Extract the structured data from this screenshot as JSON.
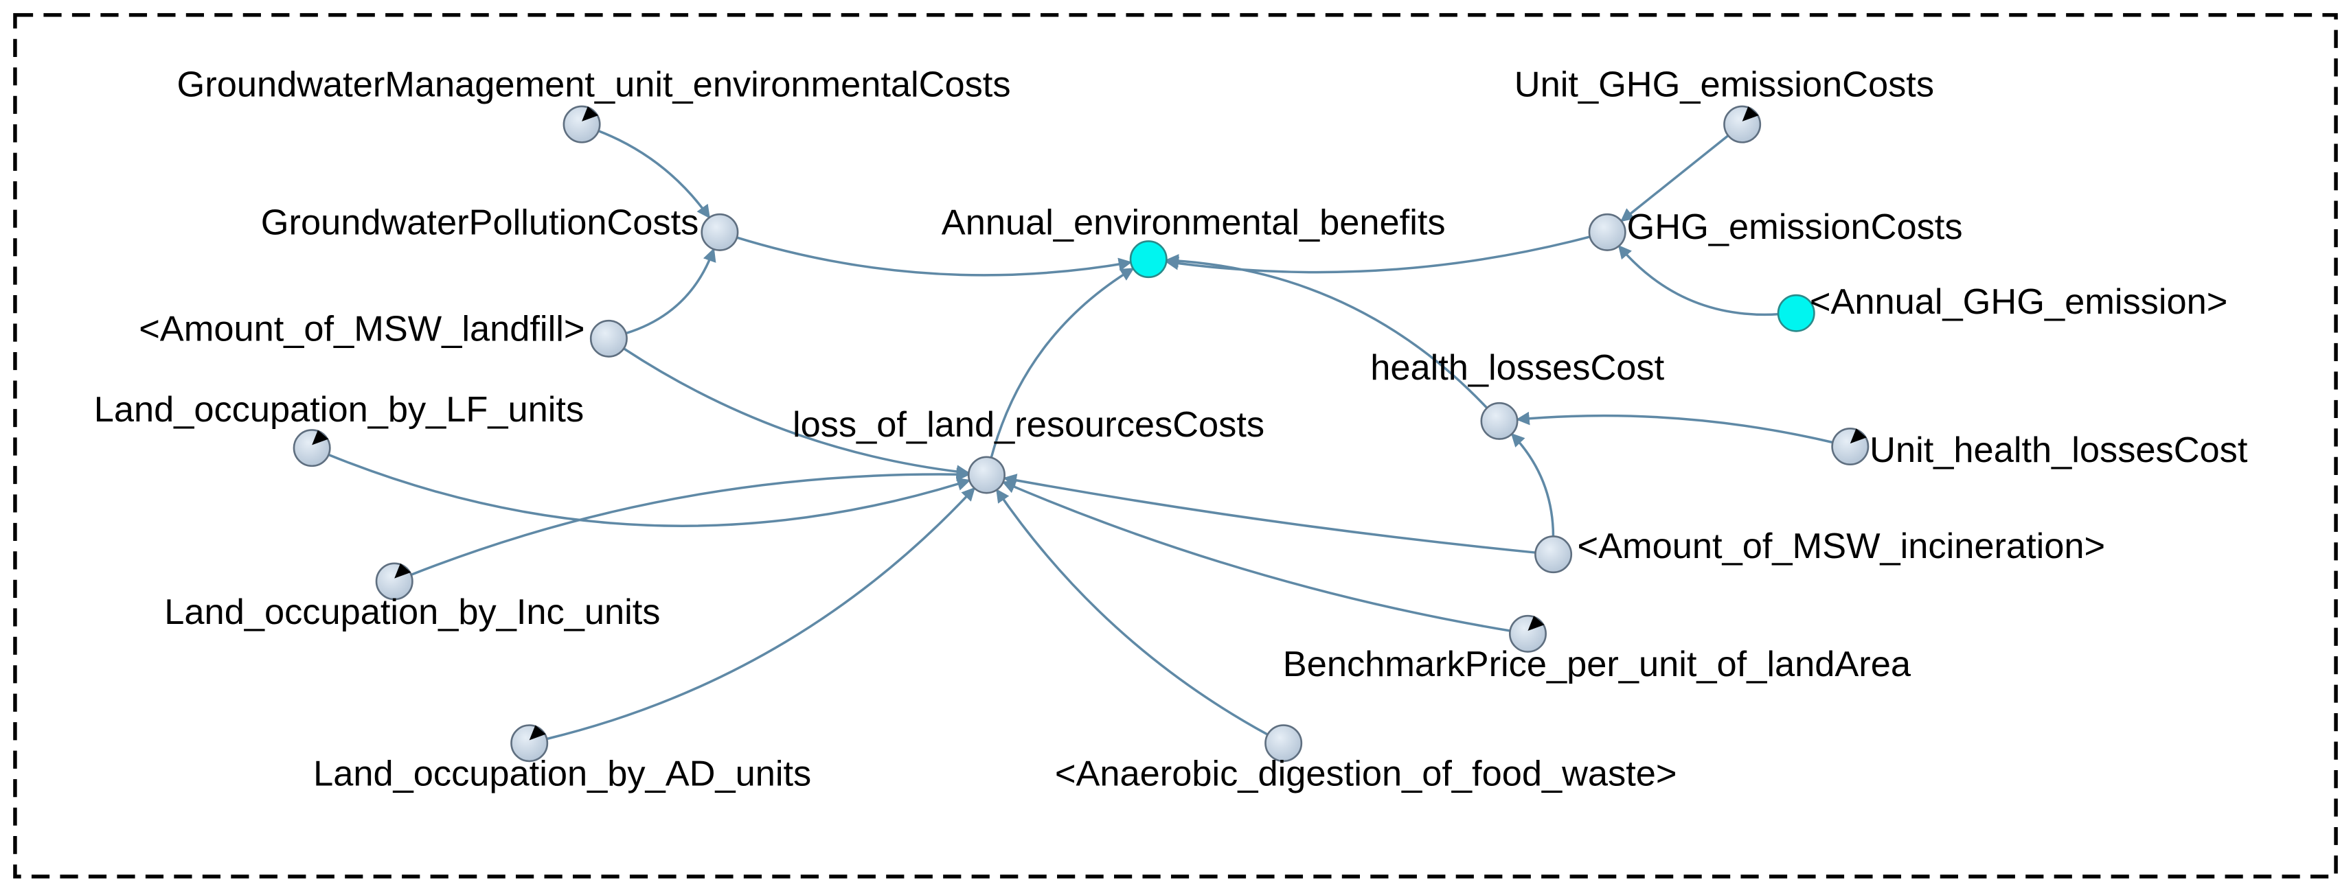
{
  "nodes": [
    {
      "label": "GroundwaterManagement_unit_environmentalCosts"
    },
    {
      "label": "GroundwaterPollutionCosts"
    },
    {
      "label": "Annual_environmental_benefits"
    },
    {
      "label": "Unit_GHG_emissionCosts"
    },
    {
      "label": "GHG_emissionCosts"
    },
    {
      "label": "<Annual_GHG_emission>"
    },
    {
      "label": "<Amount_of_MSW_landfill>"
    },
    {
      "label": "health_lossesCost"
    },
    {
      "label": "Unit_health_lossesCost"
    },
    {
      "label": "Land_occupation_by_LF_units"
    },
    {
      "label": "loss_of_land_resourcesCosts"
    },
    {
      "label": "<Amount_of_MSW_incineration>"
    },
    {
      "label": "Land_occupation_by_Inc_units"
    },
    {
      "label": "BenchmarkPrice_per_unit_of_landArea"
    },
    {
      "label": "Land_occupation_by_AD_units"
    },
    {
      "label": "<Anaerobic_digestion_of_food_waste>"
    }
  ]
}
